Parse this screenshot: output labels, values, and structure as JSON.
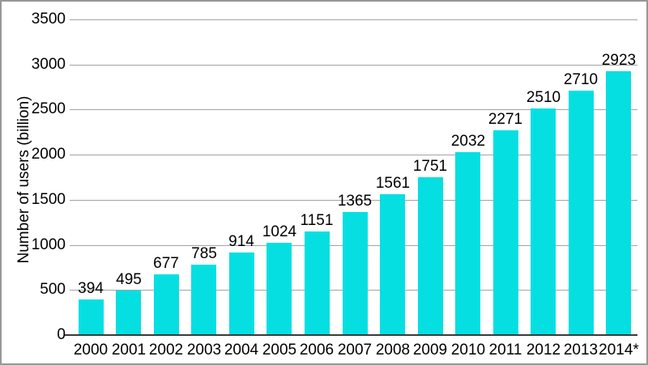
{
  "chart_data": {
    "type": "bar",
    "title": "",
    "categories": [
      "2000",
      "2001",
      "2002",
      "2003",
      "2004",
      "2005",
      "2006",
      "2007",
      "2008",
      "2009",
      "2010",
      "2011",
      "2012",
      "2013",
      "2014*"
    ],
    "values": [
      394,
      495,
      677,
      785,
      914,
      1024,
      1151,
      1365,
      1561,
      1751,
      2032,
      2271,
      2510,
      2710,
      2923
    ],
    "xlabel": "",
    "ylabel": "Number of users (billion)",
    "ylim": [
      0,
      3500
    ],
    "ytick_interval": 500,
    "yticks": [
      "0",
      "500",
      "1000",
      "1500",
      "2000",
      "2500",
      "3000",
      "3500"
    ],
    "grid": "horizontal gridlines on",
    "legend_position": "none",
    "value_labels_shown": true,
    "colors": {
      "bar": "#05dfe2",
      "gridline": "#a3a3a3",
      "axis": "#3a3a3a",
      "text": "#000000",
      "background": "#ffffff",
      "border": "#979797"
    }
  }
}
